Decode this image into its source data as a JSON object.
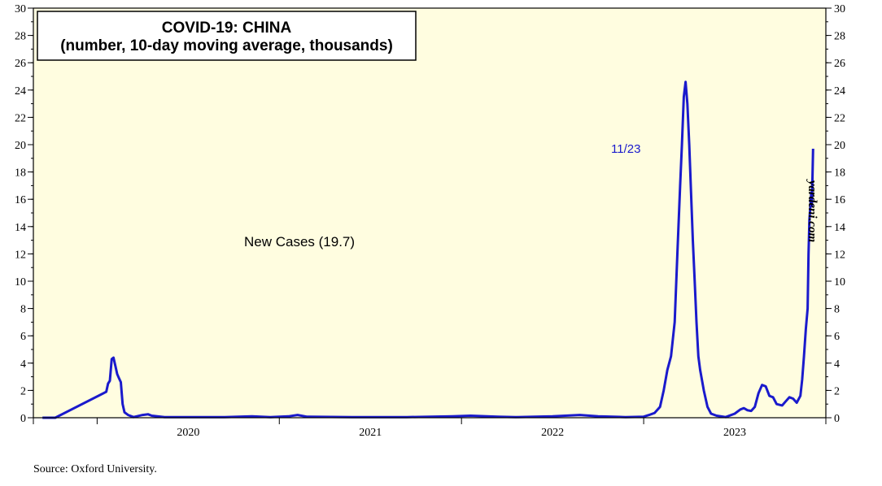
{
  "source": "Source: Oxford University.",
  "watermark": "yardeni.com",
  "colors": {
    "background": "#fffde0",
    "line": "#1a1acc",
    "frame": "#000000"
  },
  "chart_data": {
    "type": "line",
    "title": "COVID-19: CHINA",
    "subtitle": "(number, 10-day moving average, thousands)",
    "annotation": "New Cases (19.7)",
    "end_label": "11/23",
    "xlim": [
      2019.65,
      2024.0
    ],
    "ylim": [
      0,
      30
    ],
    "y_ticks": [
      0,
      2,
      4,
      6,
      8,
      10,
      12,
      14,
      16,
      18,
      20,
      22,
      24,
      26,
      28,
      30
    ],
    "x_year_ticks": [
      2020,
      2021,
      2022,
      2023,
      2024
    ],
    "x_year_labels": [
      {
        "label": "2020",
        "x": 2020.5
      },
      {
        "label": "2021",
        "x": 2021.5
      },
      {
        "label": "2022",
        "x": 2022.5
      },
      {
        "label": "2023",
        "x": 2023.5
      }
    ],
    "grid": false,
    "series": [
      {
        "values": [
          [
            2019.7,
            0.0
          ],
          [
            2019.75,
            0.0
          ],
          [
            2019.77,
            0.0
          ],
          [
            2020.05,
            1.9
          ],
          [
            2020.06,
            2.5
          ],
          [
            2020.07,
            2.7
          ],
          [
            2020.08,
            4.3
          ],
          [
            2020.09,
            4.4
          ],
          [
            2020.1,
            3.8
          ],
          [
            2020.11,
            3.2
          ],
          [
            2020.12,
            2.9
          ],
          [
            2020.13,
            2.6
          ],
          [
            2020.14,
            1.0
          ],
          [
            2020.15,
            0.4
          ],
          [
            2020.17,
            0.2
          ],
          [
            2020.2,
            0.05
          ],
          [
            2020.25,
            0.2
          ],
          [
            2020.28,
            0.25
          ],
          [
            2020.3,
            0.15
          ],
          [
            2020.33,
            0.1
          ],
          [
            2020.37,
            0.05
          ],
          [
            2020.5,
            0.05
          ],
          [
            2020.7,
            0.05
          ],
          [
            2020.85,
            0.1
          ],
          [
            2020.95,
            0.05
          ],
          [
            2021.05,
            0.1
          ],
          [
            2021.1,
            0.2
          ],
          [
            2021.15,
            0.08
          ],
          [
            2021.4,
            0.05
          ],
          [
            2021.7,
            0.05
          ],
          [
            2021.95,
            0.1
          ],
          [
            2022.05,
            0.15
          ],
          [
            2022.2,
            0.08
          ],
          [
            2022.3,
            0.05
          ],
          [
            2022.5,
            0.1
          ],
          [
            2022.65,
            0.2
          ],
          [
            2022.75,
            0.1
          ],
          [
            2022.9,
            0.05
          ],
          [
            2023.0,
            0.08
          ],
          [
            2023.03,
            0.2
          ],
          [
            2023.06,
            0.35
          ],
          [
            2023.09,
            0.8
          ],
          [
            2023.11,
            2.0
          ],
          [
            2023.13,
            3.5
          ],
          [
            2023.15,
            4.5
          ],
          [
            2023.17,
            7.0
          ],
          [
            2023.185,
            12.0
          ],
          [
            2023.2,
            17.0
          ],
          [
            2023.21,
            20.0
          ],
          [
            2023.22,
            23.5
          ],
          [
            2023.23,
            24.6
          ],
          [
            2023.24,
            23.0
          ],
          [
            2023.25,
            20.0
          ],
          [
            2023.26,
            16.5
          ],
          [
            2023.27,
            13.0
          ],
          [
            2023.28,
            10.0
          ],
          [
            2023.29,
            7.0
          ],
          [
            2023.3,
            4.5
          ],
          [
            2023.31,
            3.5
          ],
          [
            2023.33,
            2.0
          ],
          [
            2023.35,
            0.8
          ],
          [
            2023.37,
            0.3
          ],
          [
            2023.4,
            0.15
          ],
          [
            2023.45,
            0.05
          ],
          [
            2023.5,
            0.3
          ],
          [
            2023.53,
            0.6
          ],
          [
            2023.55,
            0.7
          ],
          [
            2023.57,
            0.55
          ],
          [
            2023.59,
            0.5
          ],
          [
            2023.61,
            0.8
          ],
          [
            2023.63,
            1.8
          ],
          [
            2023.65,
            2.4
          ],
          [
            2023.67,
            2.3
          ],
          [
            2023.69,
            1.6
          ],
          [
            2023.71,
            1.5
          ],
          [
            2023.73,
            1.0
          ],
          [
            2023.76,
            0.9
          ],
          [
            2023.78,
            1.2
          ],
          [
            2023.8,
            1.5
          ],
          [
            2023.82,
            1.4
          ],
          [
            2023.84,
            1.1
          ],
          [
            2023.86,
            1.6
          ],
          [
            2023.87,
            2.8
          ],
          [
            2023.88,
            4.5
          ],
          [
            2023.89,
            6.5
          ],
          [
            2023.9,
            8.0
          ],
          [
            2023.905,
            12.0
          ],
          [
            2023.91,
            14.5
          ],
          [
            2023.92,
            16.5
          ],
          [
            2023.923,
            15.5
          ],
          [
            2023.93,
            19.7
          ]
        ]
      }
    ]
  }
}
